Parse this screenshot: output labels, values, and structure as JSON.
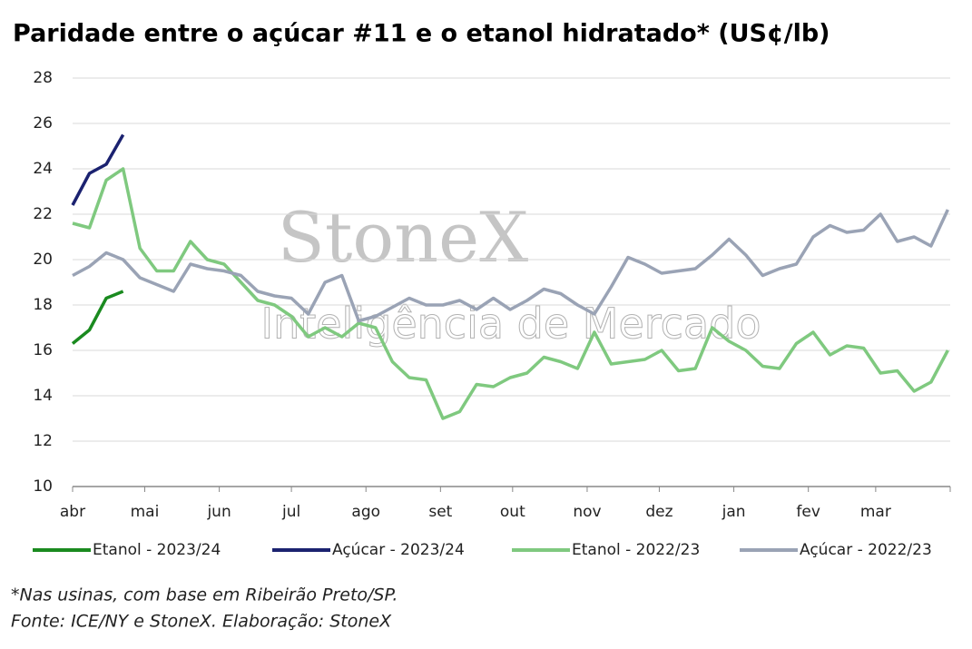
{
  "chart_data": {
    "type": "line",
    "title": "Paridade entre o açúcar #11 e o etanol hidratado* (US¢/lb)",
    "watermark": [
      "StoneX",
      "Inteligência de Mercado"
    ],
    "notes": [
      "*Nas usinas, com base em Ribeirão Preto/SP.",
      "Fonte: ICE/NY e StoneX. Elaboração: StoneX"
    ],
    "x": [
      0,
      7,
      14,
      21,
      28,
      35,
      42,
      49,
      56,
      63,
      70,
      77,
      84,
      91,
      98,
      105,
      112,
      119,
      126,
      133,
      140,
      147,
      154,
      161,
      168,
      175,
      182,
      189,
      196,
      203,
      210,
      217,
      224,
      231,
      238,
      245,
      252,
      259,
      266,
      273,
      280,
      287,
      294,
      301,
      308,
      315,
      322,
      329,
      336,
      343,
      350,
      357,
      364
    ],
    "xlim": [
      0,
      365
    ],
    "xticks": [
      {
        "value": 0,
        "label": "abr"
      },
      {
        "value": 30,
        "label": "mai"
      },
      {
        "value": 61,
        "label": "jun"
      },
      {
        "value": 91,
        "label": "jul"
      },
      {
        "value": 122,
        "label": "ago"
      },
      {
        "value": 153,
        "label": "set"
      },
      {
        "value": 183,
        "label": "out"
      },
      {
        "value": 214,
        "label": "nov"
      },
      {
        "value": 244,
        "label": "dez"
      },
      {
        "value": 275,
        "label": "jan"
      },
      {
        "value": 306,
        "label": "fev"
      },
      {
        "value": 334,
        "label": "mar"
      }
    ],
    "ylim": [
      10,
      28
    ],
    "yticks": [
      10,
      12,
      14,
      16,
      18,
      20,
      22,
      24,
      26,
      28
    ],
    "grid": true,
    "legend": "bottom",
    "series": [
      {
        "name": "Etanol - 2023/24",
        "color": "#1a8a1f",
        "values": [
          16.3,
          16.9,
          18.3,
          18.6,
          null,
          null,
          null,
          null,
          null,
          null,
          null,
          null,
          null,
          null,
          null,
          null,
          null,
          null,
          null,
          null,
          null,
          null,
          null,
          null,
          null,
          null,
          null,
          null,
          null,
          null,
          null,
          null,
          null,
          null,
          null,
          null,
          null,
          null,
          null,
          null,
          null,
          null,
          null,
          null,
          null,
          null,
          null,
          null,
          null,
          null,
          null,
          null,
          null
        ]
      },
      {
        "name": "Açúcar - 2023/24",
        "color": "#1b2270",
        "values": [
          22.4,
          23.8,
          24.2,
          25.5,
          null,
          null,
          null,
          null,
          null,
          null,
          null,
          null,
          null,
          null,
          null,
          null,
          null,
          null,
          null,
          null,
          null,
          null,
          null,
          null,
          null,
          null,
          null,
          null,
          null,
          null,
          null,
          null,
          null,
          null,
          null,
          null,
          null,
          null,
          null,
          null,
          null,
          null,
          null,
          null,
          null,
          null,
          null,
          null,
          null,
          null,
          null,
          null,
          null
        ]
      },
      {
        "name": "Etanol - 2022/23",
        "color": "#7fc97f",
        "values": [
          21.6,
          21.4,
          23.5,
          24.0,
          20.5,
          19.5,
          19.5,
          20.8,
          20.0,
          19.8,
          19.0,
          18.2,
          18.0,
          17.5,
          16.6,
          17.0,
          16.6,
          17.2,
          17.0,
          15.5,
          14.8,
          14.7,
          13.0,
          13.3,
          14.5,
          14.4,
          14.8,
          15.0,
          15.7,
          15.5,
          15.2,
          16.8,
          15.4,
          15.5,
          15.6,
          16.0,
          15.1,
          15.2,
          17.0,
          16.4,
          16.0,
          15.3,
          15.2,
          16.3,
          16.8,
          15.8,
          16.2,
          16.1,
          15.0,
          15.1,
          14.2,
          14.6,
          16.0
        ]
      },
      {
        "name": "Açúcar - 2022/23",
        "color": "#9aa3b5",
        "values": [
          19.3,
          19.7,
          20.3,
          20.0,
          19.2,
          18.9,
          18.6,
          19.8,
          19.6,
          19.5,
          19.3,
          18.6,
          18.4,
          18.3,
          17.6,
          19.0,
          19.3,
          17.3,
          17.5,
          17.9,
          18.3,
          18.0,
          18.0,
          18.2,
          17.8,
          18.3,
          17.8,
          18.2,
          18.7,
          18.5,
          18.0,
          17.6,
          18.8,
          20.1,
          19.8,
          19.4,
          19.5,
          19.6,
          20.2,
          20.9,
          20.2,
          19.3,
          19.6,
          19.8,
          21.0,
          21.5,
          21.2,
          21.3,
          22.0,
          20.8,
          21.0,
          20.6,
          22.2
        ]
      }
    ]
  }
}
